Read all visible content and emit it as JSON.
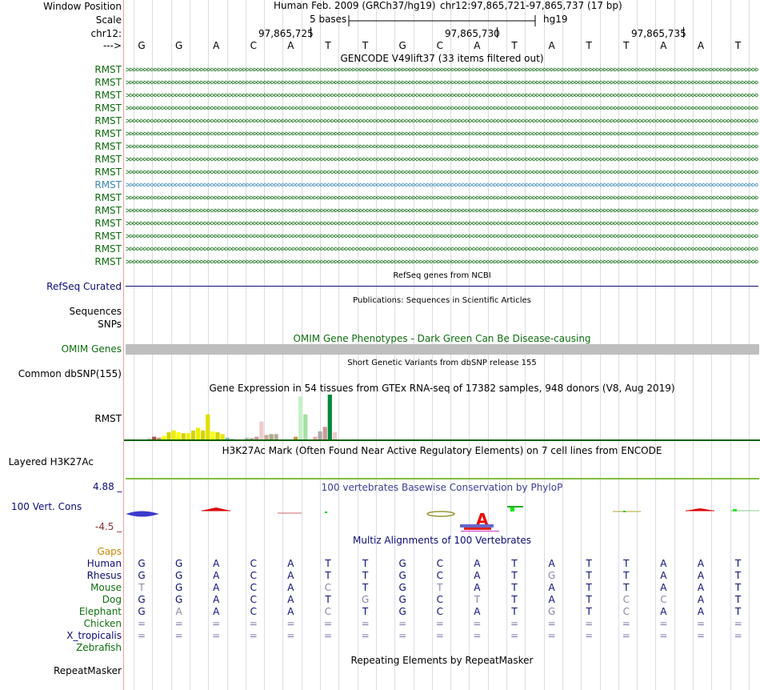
{
  "header": {
    "window_position_label": "Window Position",
    "scale_label": "Scale",
    "chrom_label": "chr12:",
    "arrow_label": "--->",
    "assembly": "Human Feb. 2009 (GRCh37/hg19)",
    "position": "chr12:97,865,721-97,865,737 (17 bp)",
    "scale_text": "5 bases",
    "scale_db": "hg19",
    "coord_ticks": [
      "97,865,725",
      "97,865,730",
      "97,865,735"
    ]
  },
  "sequence": [
    "G",
    "G",
    "A",
    "C",
    "A",
    "T",
    "T",
    "G",
    "C",
    "A",
    "T",
    "A",
    "T",
    "T",
    "A",
    "A",
    "T"
  ],
  "gencode": {
    "title": "GENCODE V49lift37 (33 items filtered out)",
    "gene_name": "RMST",
    "rows": 16,
    "highlight_row": 9,
    "color": "#0f6e0f",
    "highlight_color": "#3a86b8"
  },
  "refseq": {
    "title": "RefSeq genes from NCBI",
    "label": "RefSeq Curated",
    "color": "#0c0c78"
  },
  "publications": {
    "title": "Publications: Sequences in Scientific Articles",
    "labels": [
      "Sequences",
      "SNPs"
    ]
  },
  "omim": {
    "title": "OMIM Gene Phenotypes - Dark Green Can Be Disease-causing",
    "label": "OMIM Genes",
    "color": "#0f6e0f",
    "bar_color": "#bebebe"
  },
  "dbsnp": {
    "title": "Short Genetic Variants from dbSNP release 155",
    "label": "Common dbSNP(155)"
  },
  "gtex": {
    "title": "Gene Expression in 54 tissues from GTEx RNA-seq of 17382 samples, 948 donors (V8, Aug 2019)",
    "label": "RMST",
    "bars": [
      {
        "v": 0.03,
        "c": "#cccccc"
      },
      {
        "v": 0.06,
        "c": "#b24f4f"
      },
      {
        "v": 0.04,
        "c": "#cc9966"
      },
      {
        "v": 0.08,
        "c": "#ffff00"
      },
      {
        "v": 0.16,
        "c": "#d4d400"
      },
      {
        "v": 0.2,
        "c": "#eeee00"
      },
      {
        "v": 0.16,
        "c": "#ffff00"
      },
      {
        "v": 0.14,
        "c": "#d4d400"
      },
      {
        "v": 0.14,
        "c": "#eeee00"
      },
      {
        "v": 0.2,
        "c": "#d4d400"
      },
      {
        "v": 0.26,
        "c": "#eeee00"
      },
      {
        "v": 0.2,
        "c": "#d4d400"
      },
      {
        "v": 0.56,
        "c": "#e0e000"
      },
      {
        "v": 0.18,
        "c": "#ffff00"
      },
      {
        "v": 0.16,
        "c": "#d4d400"
      },
      {
        "v": 0.12,
        "c": "#e6e600"
      },
      {
        "v": 0.04,
        "c": "#7ac0c0"
      },
      {
        "v": 0.02,
        "c": "#cccccc"
      },
      {
        "v": 0.0,
        "c": "#ffffff"
      },
      {
        "v": 0.0,
        "c": "#ffffff"
      },
      {
        "v": 0.04,
        "c": "#bbbbbb"
      },
      {
        "v": 0.03,
        "c": "#aaaa99"
      },
      {
        "v": 0.06,
        "c": "#cc9999"
      },
      {
        "v": 0.4,
        "c": "#eecccc"
      },
      {
        "v": 0.1,
        "c": "#c9a89a"
      },
      {
        "v": 0.12,
        "c": "#aaaa88"
      },
      {
        "v": 0.12,
        "c": "#bbaa99"
      },
      {
        "v": 0.0,
        "c": "#ffffff"
      },
      {
        "v": 0.0,
        "c": "#ffffff"
      },
      {
        "v": 0.0,
        "c": "#ffffff"
      },
      {
        "v": 0.06,
        "c": "#cc9944"
      },
      {
        "v": 0.96,
        "c": "#c4f0c4"
      },
      {
        "v": 0.56,
        "c": "#a6e0a6"
      },
      {
        "v": 0.0,
        "c": "#ffffff"
      },
      {
        "v": 0.06,
        "c": "#eeaaaa"
      },
      {
        "v": 0.18,
        "c": "#aaaaaa"
      },
      {
        "v": 0.28,
        "c": "#cc9999"
      },
      {
        "v": 1.0,
        "c": "#00883a"
      },
      {
        "v": 0.16,
        "c": "#eecccc"
      }
    ],
    "baseline_color": "#006000"
  },
  "h3k27ac": {
    "title": "H3K27Ac Mark (Often Found Near Active Regulatory Elements) on 7 cell lines from ENCODE",
    "label": "Layered H3K27Ac",
    "line_color": "#7fbf3f"
  },
  "phylop": {
    "title": "100 vertebrates Basewise Conservation by PhyloP",
    "label": "100 Vert. Cons",
    "max_label": "4.88 _",
    "min_label": "-4.5 _",
    "title_color": "#3c3c99",
    "max_color": "#0c0c78",
    "min_color": "#883333"
  },
  "multiz": {
    "title": "Multiz Alignments of 100 Vertebrates",
    "title_color": "#0c0c78",
    "gaps_label": "Gaps",
    "gaps_color": "#cc8800",
    "species": [
      {
        "name": "Human",
        "color": "#0c0c78",
        "seq": "GGACATTGCATATTAAT"
      },
      {
        "name": "Rhesus",
        "color": "#0c0c78",
        "seq": "GGACATTGCATGTTAAT"
      },
      {
        "name": "Mouse",
        "color": "#0f6e0f",
        "seq": "TGACACTGTATATTAAT"
      },
      {
        "name": "Dog",
        "color": "#0f6e0f",
        "seq": "GGACATGGCTTATCCAT"
      },
      {
        "name": "Elephant",
        "color": "#0f6e0f",
        "seq": "GAACACTGCATGTCAAT"
      },
      {
        "name": "Chicken",
        "color": "#0f6e0f",
        "seq": "================="
      },
      {
        "name": "X_tropicalis",
        "color": "#0c0c78",
        "seq": "================="
      },
      {
        "name": "Zebrafish",
        "color": "#0f6e0f",
        "seq": ""
      }
    ],
    "mismatch": [
      [
        0,
        0,
        0,
        0,
        0,
        0,
        0,
        0,
        0,
        0,
        0,
        0,
        0,
        0,
        0,
        0,
        0
      ],
      [
        0,
        0,
        0,
        0,
        0,
        0,
        0,
        0,
        0,
        0,
        0,
        1,
        0,
        0,
        0,
        0,
        0
      ],
      [
        1,
        0,
        0,
        0,
        0,
        1,
        0,
        0,
        1,
        0,
        0,
        0,
        0,
        0,
        0,
        0,
        0
      ],
      [
        0,
        0,
        0,
        0,
        0,
        0,
        1,
        0,
        0,
        1,
        0,
        0,
        0,
        1,
        1,
        0,
        0
      ],
      [
        0,
        1,
        0,
        0,
        0,
        1,
        0,
        0,
        0,
        0,
        0,
        1,
        0,
        1,
        0,
        0,
        0
      ],
      [
        0,
        0,
        0,
        0,
        0,
        0,
        0,
        0,
        0,
        0,
        0,
        0,
        0,
        0,
        0,
        0,
        0
      ],
      [
        0,
        0,
        0,
        0,
        0,
        0,
        0,
        0,
        0,
        0,
        0,
        0,
        0,
        0,
        0,
        0,
        0
      ],
      [
        0,
        0,
        0,
        0,
        0,
        0,
        0,
        0,
        0,
        0,
        0,
        0,
        0,
        0,
        0,
        0,
        0
      ]
    ]
  },
  "repeatmasker": {
    "title": "Repeating Elements by RepeatMasker",
    "label": "RepeatMasker"
  }
}
